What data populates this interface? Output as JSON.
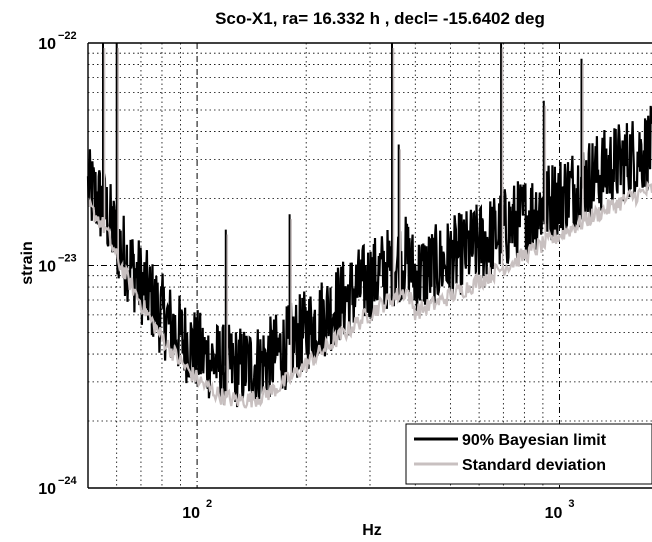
{
  "chart_data": {
    "type": "line",
    "title": "Sco-X1, ra= 16.332 h , decl= -15.6402 deg",
    "xlabel": "Hz",
    "ylabel": "strain",
    "xscale": "log",
    "yscale": "log",
    "xlim": [
      50,
      1800
    ],
    "ylim": [
      1e-24,
      1e-22
    ],
    "grid": true,
    "legend_placement": "bottom-right",
    "x_ticks": [
      {
        "value": 100,
        "base": "10",
        "exp": "2"
      },
      {
        "value": 1000,
        "base": "10",
        "exp": "3"
      }
    ],
    "y_ticks": [
      {
        "value": 1e-24,
        "base": "10",
        "exp": "−24"
      },
      {
        "value": 1e-23,
        "base": "10",
        "exp": "−23"
      },
      {
        "value": 1e-22,
        "base": "10",
        "exp": "−22"
      }
    ],
    "series": [
      {
        "name": "90% Bayesian limit",
        "color": "#000000",
        "x": [
          50,
          53,
          56,
          58,
          60,
          63,
          66,
          70,
          75,
          80,
          85,
          90,
          95,
          100,
          105,
          110,
          115,
          120,
          125,
          130,
          135,
          140,
          150,
          160,
          170,
          180,
          190,
          200,
          220,
          240,
          260,
          280,
          300,
          320,
          340,
          360,
          380,
          400,
          450,
          500,
          550,
          600,
          700,
          800,
          900,
          1000,
          1100,
          1200,
          1300,
          1400,
          1500,
          1600,
          1700,
          1800
        ],
        "y": [
          2.2e-23,
          2e-23,
          1.75e-23,
          1.5e-23,
          1.3e-23,
          1.12e-23,
          9.8e-24,
          8.4e-24,
          7e-24,
          6e-24,
          5.3e-24,
          4.8e-24,
          4.45e-24,
          4.15e-24,
          3.9e-24,
          3.75e-24,
          3.62e-24,
          3.55e-24,
          3.5e-24,
          3.5e-24,
          3.52e-24,
          3.55e-24,
          3.65e-24,
          3.85e-24,
          4.1e-24,
          4.4e-24,
          4.75e-24,
          5.1e-24,
          5.8e-24,
          6.5e-24,
          7.2e-24,
          7.9e-24,
          8.6e-24,
          9.2e-24,
          9.8e-24,
          1.05e-23,
          1.1e-23,
          9e-24,
          9.8e-24,
          1.07e-23,
          1.16e-23,
          1.25e-23,
          1.45e-23,
          1.65e-23,
          1.85e-23,
          2.05e-23,
          2.25e-23,
          2.45e-23,
          2.62e-23,
          2.8e-23,
          2.95e-23,
          3.1e-23,
          3.25e-23,
          3.4e-23
        ]
      },
      {
        "name": "Standard deviation",
        "color": "#c8c0c0",
        "x": [
          50,
          53,
          56,
          58,
          60,
          63,
          66,
          70,
          75,
          80,
          85,
          90,
          95,
          100,
          105,
          110,
          115,
          120,
          125,
          130,
          135,
          140,
          150,
          160,
          170,
          180,
          190,
          200,
          220,
          240,
          260,
          280,
          300,
          320,
          340,
          360,
          380,
          400,
          450,
          500,
          550,
          600,
          700,
          800,
          900,
          1000,
          1100,
          1200,
          1300,
          1400,
          1500,
          1600,
          1700,
          1800
        ],
        "y": [
          1.85e-23,
          1.65e-23,
          1.45e-23,
          1.25e-23,
          1.08e-23,
          9.3e-24,
          8.1e-24,
          6.8e-24,
          5.6e-24,
          4.75e-24,
          4.15e-24,
          3.7e-24,
          3.35e-24,
          3.1e-24,
          2.9e-24,
          2.75e-24,
          2.62e-24,
          2.55e-24,
          2.5e-24,
          2.48e-24,
          2.48e-24,
          2.5e-24,
          2.58e-24,
          2.72e-24,
          2.9e-24,
          3.1e-24,
          3.35e-24,
          3.6e-24,
          4.1e-24,
          4.6e-24,
          5.1e-24,
          5.6e-24,
          6.1e-24,
          6.6e-24,
          7e-24,
          7.4e-24,
          7.7e-24,
          6.2e-24,
          6.7e-24,
          7.3e-24,
          7.9e-24,
          8.5e-24,
          9.8e-24,
          1.11e-23,
          1.24e-23,
          1.37e-23,
          1.5e-23,
          1.62e-23,
          1.74e-23,
          1.85e-23,
          1.95e-23,
          2.05e-23,
          2.12e-23,
          2.2e-23
        ]
      }
    ],
    "spikes": [
      {
        "x": 55,
        "y": 1e-22
      },
      {
        "x": 60,
        "y": 1e-22
      },
      {
        "x": 120,
        "y": 1.45e-23
      },
      {
        "x": 180,
        "y": 1.7e-23
      },
      {
        "x": 345,
        "y": 1e-22
      },
      {
        "x": 360,
        "y": 3.5e-23
      },
      {
        "x": 690,
        "y": 1e-22
      },
      {
        "x": 905,
        "y": 5.5e-23
      },
      {
        "x": 1150,
        "y": 8.5e-23
      }
    ]
  }
}
